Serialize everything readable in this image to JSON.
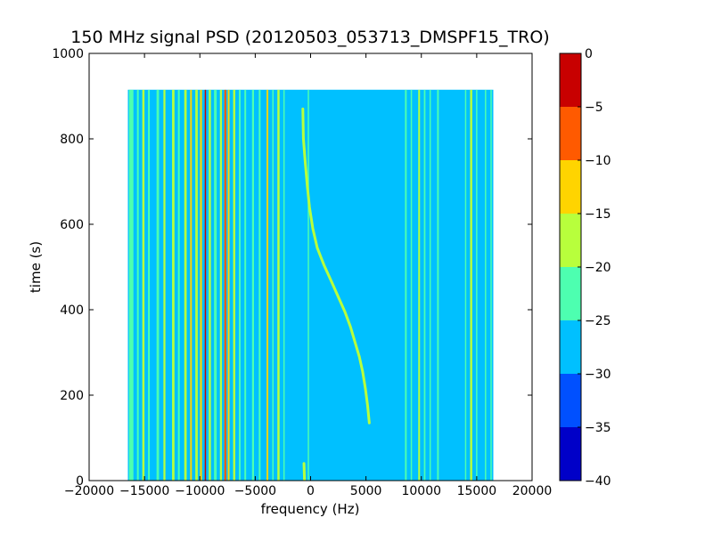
{
  "chart_data": {
    "type": "heatmap",
    "title": "150 MHz signal PSD (20120503_053713_DMSPF15_TRO)",
    "xlabel": "frequency (Hz)",
    "ylabel": "time (s)",
    "xlim": [
      -20000,
      20000
    ],
    "ylim": [
      0,
      1000
    ],
    "x_ticks": [
      -20000,
      -15000,
      -10000,
      -5000,
      0,
      5000,
      10000,
      15000,
      20000
    ],
    "x_tick_labels": [
      "−20000",
      "−15000",
      "−10000",
      "−5000",
      "0",
      "5000",
      "10000",
      "15000",
      "20000"
    ],
    "y_ticks": [
      0,
      200,
      400,
      600,
      800,
      1000
    ],
    "y_tick_labels": [
      "0",
      "200",
      "400",
      "600",
      "800",
      "1000"
    ],
    "data_extent": {
      "x": [
        -16500,
        16500
      ],
      "y": [
        0,
        915
      ]
    },
    "background_level": -27.5,
    "colorbar": {
      "levels": [
        -40,
        -35,
        -30,
        -25,
        -20,
        -15,
        -10,
        -5,
        0
      ],
      "tick_labels": [
        "−40",
        "−35",
        "−30",
        "−25",
        "−20",
        "−15",
        "−10",
        "−5",
        "0"
      ],
      "colors": [
        "#0000c8",
        "#0050ff",
        "#00c0ff",
        "#4dffb0",
        "#b8ff3c",
        "#ffd400",
        "#ff5a00",
        "#c80000"
      ]
    },
    "vertical_lines": [
      {
        "freq": -16200,
        "width": 400,
        "level": -22.5
      },
      {
        "freq": -15600,
        "width": 160,
        "level": -22.5
      },
      {
        "freq": -15100,
        "width": 200,
        "level": -17.5
      },
      {
        "freq": -14600,
        "width": 160,
        "level": -22.5
      },
      {
        "freq": -13800,
        "width": 220,
        "level": -22.5
      },
      {
        "freq": -13200,
        "width": 180,
        "level": -17.5
      },
      {
        "freq": -12400,
        "width": 220,
        "level": -17.5
      },
      {
        "freq": -11900,
        "width": 160,
        "level": -22.5
      },
      {
        "freq": -11300,
        "width": 220,
        "level": -17.5
      },
      {
        "freq": -10800,
        "width": 160,
        "level": -12.5
      },
      {
        "freq": -10300,
        "width": 220,
        "level": -17.5
      },
      {
        "freq": -9900,
        "width": 180,
        "level": -12.5
      },
      {
        "freq": -9500,
        "width": 120,
        "level": -2.5
      },
      {
        "freq": -9100,
        "width": 200,
        "level": -17.5
      },
      {
        "freq": -8600,
        "width": 240,
        "level": -22.5
      },
      {
        "freq": -8100,
        "width": 180,
        "level": -17.5
      },
      {
        "freq": -7700,
        "width": 180,
        "level": -7.5
      },
      {
        "freq": -7400,
        "width": 160,
        "level": -12.5
      },
      {
        "freq": -6900,
        "width": 200,
        "level": -17.5
      },
      {
        "freq": -6400,
        "width": 160,
        "level": -22.5
      },
      {
        "freq": -5900,
        "width": 160,
        "level": -22.5
      },
      {
        "freq": -5200,
        "width": 180,
        "level": -22.5
      },
      {
        "freq": -4600,
        "width": 160,
        "level": -22.5
      },
      {
        "freq": -3900,
        "width": 160,
        "level": -12.5
      },
      {
        "freq": -3400,
        "width": 120,
        "level": -22.5
      },
      {
        "freq": -2900,
        "width": 200,
        "level": -17.5
      },
      {
        "freq": -2400,
        "width": 120,
        "level": -22.5
      },
      {
        "freq": -200,
        "width": 120,
        "level": -22.5
      },
      {
        "freq": 8600,
        "width": 160,
        "level": -22.5
      },
      {
        "freq": 9100,
        "width": 120,
        "level": -22.5
      },
      {
        "freq": 9800,
        "width": 160,
        "level": -17.5
      },
      {
        "freq": 10300,
        "width": 140,
        "level": -22.5
      },
      {
        "freq": 10800,
        "width": 120,
        "level": -22.5
      },
      {
        "freq": 11500,
        "width": 160,
        "level": -22.5
      },
      {
        "freq": 14000,
        "width": 120,
        "level": -22.5
      },
      {
        "freq": 14500,
        "width": 200,
        "level": -17.5
      },
      {
        "freq": 15000,
        "width": 120,
        "level": -22.5
      },
      {
        "freq": 15800,
        "width": 120,
        "level": -22.5
      },
      {
        "freq": 16300,
        "width": 120,
        "level": -22.5
      }
    ],
    "doppler_trace": {
      "level": -17.5,
      "points": [
        [
          -600,
          40
        ],
        [
          -550,
          0
        ],
        [
          -700,
          870
        ],
        [
          -650,
          800
        ],
        [
          -500,
          750
        ],
        [
          -300,
          690
        ],
        [
          -100,
          640
        ],
        [
          200,
          590
        ],
        [
          600,
          545
        ],
        [
          1200,
          505
        ],
        [
          1900,
          465
        ],
        [
          2500,
          430
        ],
        [
          3100,
          395
        ],
        [
          3600,
          360
        ],
        [
          4000,
          325
        ],
        [
          4400,
          290
        ],
        [
          4700,
          255
        ],
        [
          4950,
          215
        ],
        [
          5150,
          175
        ],
        [
          5300,
          135
        ]
      ]
    }
  }
}
